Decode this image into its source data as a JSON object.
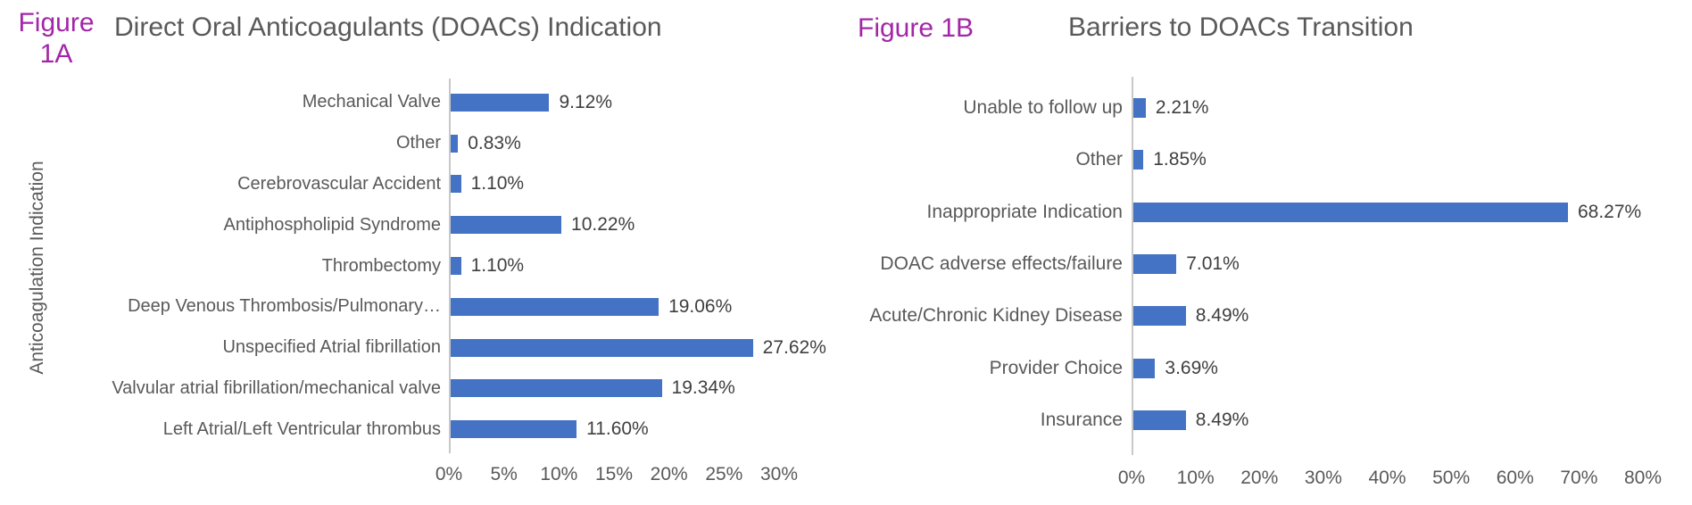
{
  "page": {
    "background": "#FFFFFF"
  },
  "colors": {
    "bar_blue": "#4472C4",
    "figure_label_purple": "#A226A8",
    "title_gray": "#595959",
    "category_label_gray": "#595959",
    "value_label_dark": "#3F3F3F",
    "axis_line_gray": "#C8C8C8"
  },
  "chart_data": [
    {
      "id": "figure-1a",
      "type": "bar",
      "orientation": "horizontal",
      "figure_label": "Figure 1A",
      "title": "Direct Oral Anticoagulants (DOACs) Indication",
      "ylabel": "Anticoagulation Indication",
      "xlabel": "",
      "categories": [
        "Mechanical Valve",
        "Other",
        "Cerebrovascular Accident",
        "Antiphospholipid Syndrome",
        "Thrombectomy",
        "Deep Venous Thrombosis/Pulmonary…",
        "Unspecified Atrial fibrillation",
        "Valvular atrial fibrillation/mechanical valve",
        "Left Atrial/Left Ventricular thrombus"
      ],
      "values": [
        9.12,
        0.83,
        1.1,
        10.22,
        1.1,
        19.06,
        27.62,
        19.34,
        11.6
      ],
      "value_labels": [
        "9.12%",
        "0.83%",
        "1.10%",
        "10.22%",
        "1.10%",
        "19.06%",
        "27.62%",
        "19.34%",
        "11.60%"
      ],
      "x_ticks": [
        "0%",
        "5%",
        "10%",
        "15%",
        "20%",
        "25%",
        "30%"
      ],
      "xlim": [
        0,
        30
      ],
      "grid": false,
      "legend": "none",
      "bar_color": "#4472C4"
    },
    {
      "id": "figure-1b",
      "type": "bar",
      "orientation": "horizontal",
      "figure_label": "Figure 1B",
      "title": "Barriers to DOACs Transition",
      "ylabel": "",
      "xlabel": "",
      "categories": [
        "Unable to follow up",
        "Other",
        "Inappropriate Indication",
        "DOAC adverse effects/failure",
        "Acute/Chronic Kidney Disease",
        "Provider Choice",
        "Insurance"
      ],
      "values": [
        2.21,
        1.85,
        68.27,
        7.01,
        8.49,
        3.69,
        8.49
      ],
      "value_labels": [
        "2.21%",
        "1.85%",
        "68.27%",
        "7.01%",
        "8.49%",
        "3.69%",
        "8.49%"
      ],
      "x_ticks": [
        "0%",
        "10%",
        "20%",
        "30%",
        "40%",
        "50%",
        "60%",
        "70%",
        "80%"
      ],
      "xlim": [
        0,
        80
      ],
      "grid": false,
      "legend": "none",
      "bar_color": "#4472C4"
    }
  ]
}
